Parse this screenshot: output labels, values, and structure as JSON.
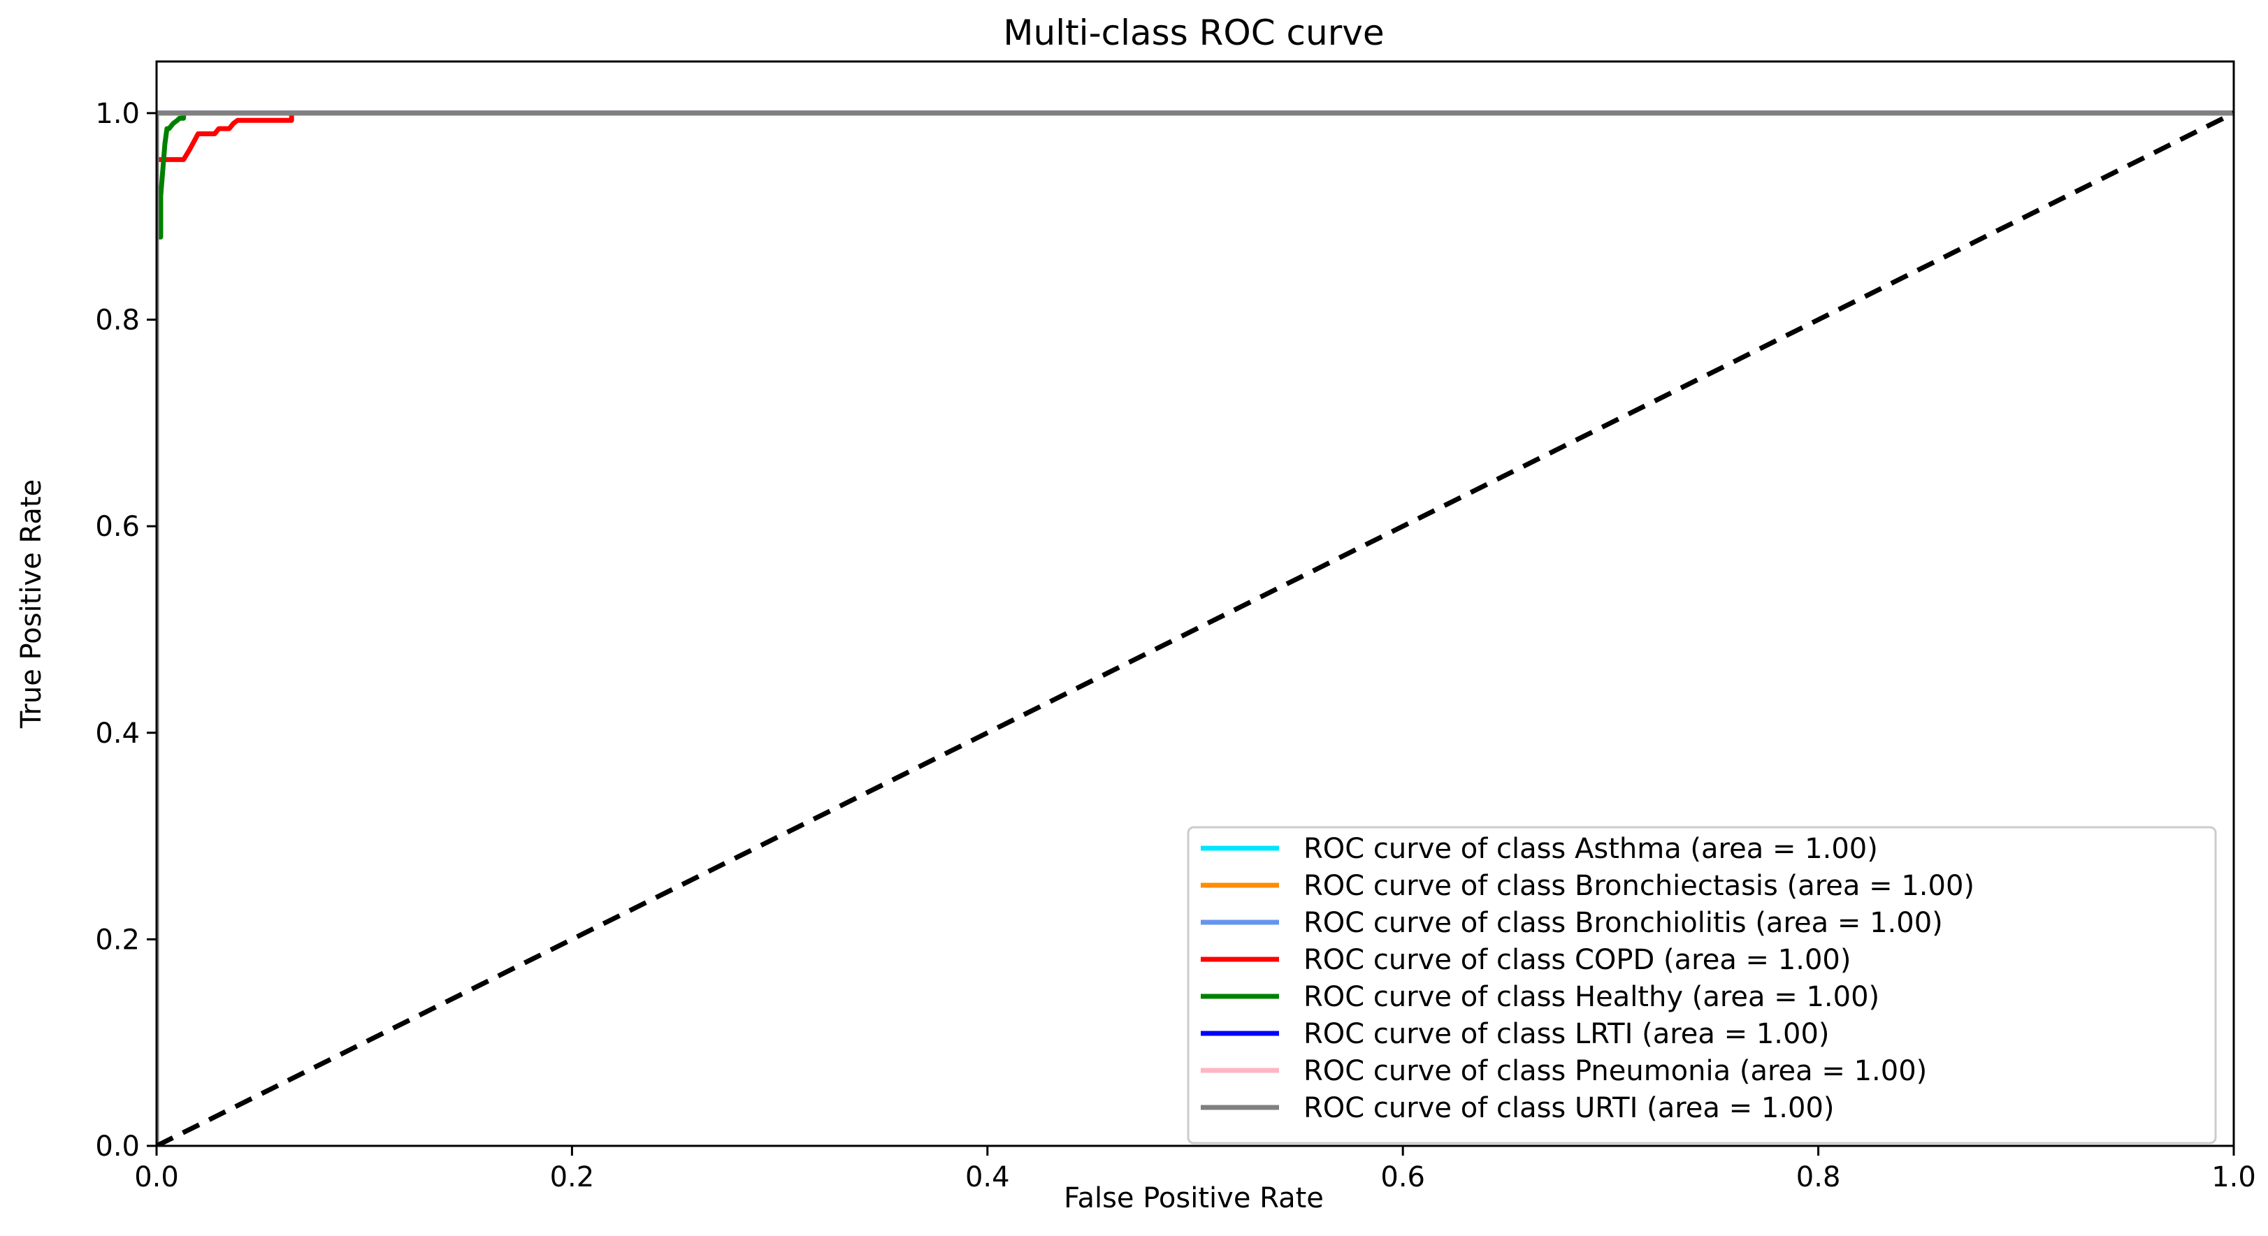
{
  "chart_data": {
    "type": "line",
    "title": "Multi-class ROC curve",
    "xlabel": "False Positive Rate",
    "ylabel": "True Positive Rate",
    "xlim": [
      0.0,
      1.0
    ],
    "ylim": [
      0.0,
      1.05
    ],
    "x_ticks": [
      0.0,
      0.2,
      0.4,
      0.6,
      0.8,
      1.0
    ],
    "y_ticks": [
      0.0,
      0.2,
      0.4,
      0.6,
      0.8,
      1.0
    ],
    "x_tick_labels": [
      "0.0",
      "0.2",
      "0.4",
      "0.6",
      "0.8",
      "1.0"
    ],
    "y_tick_labels": [
      "0.0",
      "0.2",
      "0.4",
      "0.6",
      "0.8",
      "1.0"
    ],
    "grid": false,
    "legend_position": "lower-right",
    "series": [
      {
        "name": "ROC curve of class Asthma (area = 1.00)",
        "color": "#00e5ff",
        "x": [
          0.0,
          0.0,
          1.0
        ],
        "y": [
          0.0,
          1.0,
          1.0
        ]
      },
      {
        "name": "ROC curve of class Bronchiectasis (area = 1.00)",
        "color": "#ff8c00",
        "x": [
          0.0,
          0.0,
          1.0
        ],
        "y": [
          0.0,
          1.0,
          1.0
        ]
      },
      {
        "name": "ROC curve of class Bronchiolitis (area = 1.00)",
        "color": "#6495ed",
        "x": [
          0.0,
          0.0,
          1.0
        ],
        "y": [
          0.0,
          1.0,
          1.0
        ]
      },
      {
        "name": "ROC curve of class COPD (area = 1.00)",
        "color": "#ff0000",
        "x": [
          0.0,
          0.0,
          0.002,
          0.002,
          0.004,
          0.004,
          0.013,
          0.016,
          0.02,
          0.028,
          0.03,
          0.035,
          0.037,
          0.039,
          0.042,
          0.062,
          0.065,
          0.065,
          1.0
        ],
        "y": [
          0.0,
          0.955,
          0.955,
          0.955,
          0.955,
          0.955,
          0.955,
          0.965,
          0.98,
          0.98,
          0.985,
          0.985,
          0.99,
          0.993,
          0.993,
          0.993,
          0.993,
          1.0,
          1.0
        ]
      },
      {
        "name": "ROC curve of class Healthy (area = 1.00)",
        "color": "#008000",
        "x": [
          0.0,
          0.0,
          0.002,
          0.002,
          0.004,
          0.005,
          0.006,
          0.008,
          0.01,
          0.011,
          0.013,
          0.013,
          1.0
        ],
        "y": [
          0.0,
          0.88,
          0.88,
          0.92,
          0.97,
          0.985,
          0.985,
          0.99,
          0.993,
          0.995,
          0.995,
          1.0,
          1.0
        ]
      },
      {
        "name": "ROC curve of class LRTI (area = 1.00)",
        "color": "#0000ff",
        "x": [
          0.0,
          0.0,
          1.0
        ],
        "y": [
          0.0,
          1.0,
          1.0
        ]
      },
      {
        "name": "ROC curve of class Pneumonia (area = 1.00)",
        "color": "#ffb6c1",
        "x": [
          0.0,
          0.0,
          1.0
        ],
        "y": [
          0.0,
          1.0,
          1.0
        ]
      },
      {
        "name": "ROC curve of class URTI (area = 1.00)",
        "color": "#808080",
        "x": [
          0.0,
          0.0,
          1.0
        ],
        "y": [
          0.0,
          1.0,
          1.0
        ]
      }
    ],
    "reference_line": {
      "x": [
        0.0,
        1.0
      ],
      "y": [
        0.0,
        1.0
      ],
      "color": "#000000",
      "style": "dashed"
    }
  }
}
